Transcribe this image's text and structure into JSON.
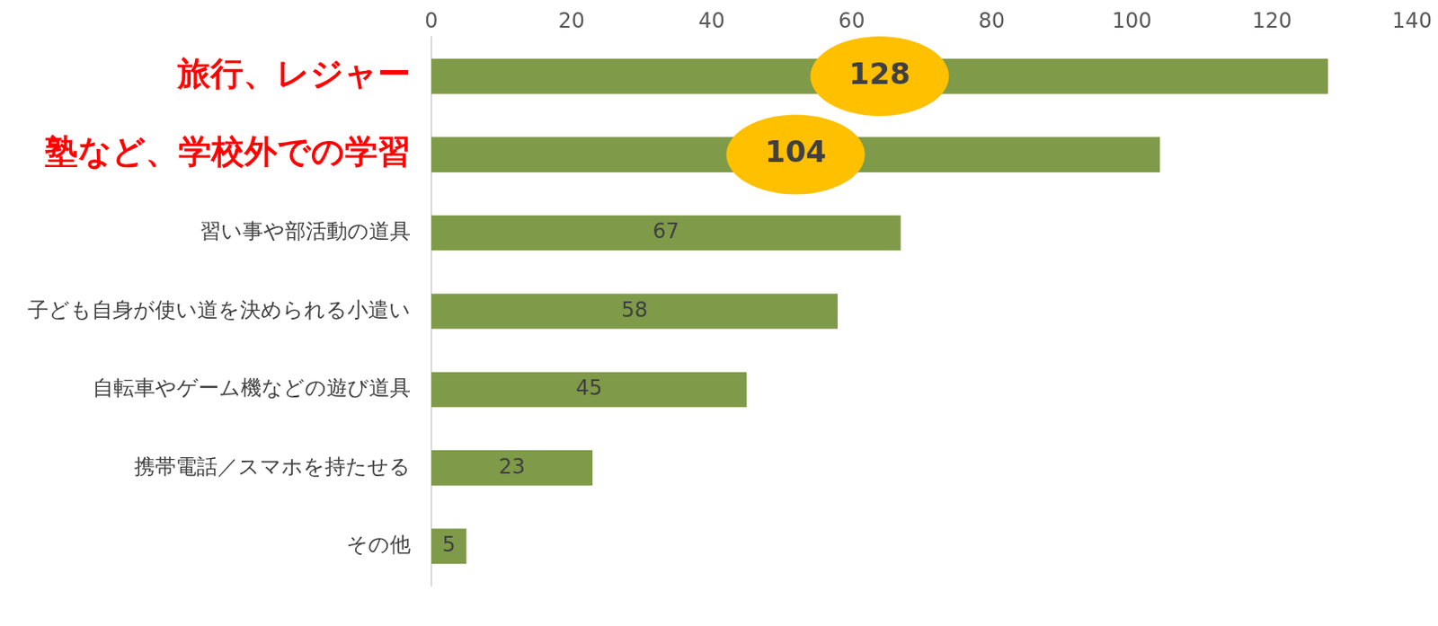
{
  "chart_data": {
    "type": "bar",
    "orientation": "horizontal",
    "categories": [
      "旅行、レジャー",
      "塾など、学校外での学習",
      "習い事や部活動の道具",
      "子ども自身が使い道を決められる小遣い",
      "自転車やゲーム機などの遊び道具",
      "携帯電話／スマホを持たせる",
      "その他"
    ],
    "values": [
      128,
      104,
      67,
      58,
      45,
      23,
      5
    ],
    "color": "#7f9a48",
    "xlim": [
      0,
      140
    ],
    "xticks": [
      0,
      20,
      40,
      60,
      80,
      100,
      120,
      140
    ],
    "grid": false,
    "data_labels": true
  }
}
